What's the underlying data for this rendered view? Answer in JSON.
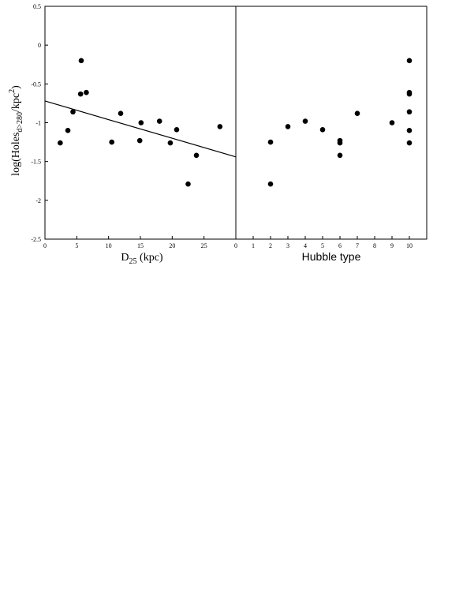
{
  "chart_data": [
    {
      "type": "scatter",
      "title": "",
      "xlabel_main": "D",
      "xlabel_sub": "25",
      "xlabel_rest": " (kpc)",
      "ylabel_pre": "log(Holes",
      "ylabel_sub": "d>280",
      "ylabel_mid": "/kpc",
      "ylabel_sup": "2",
      "ylabel_post": ")",
      "xlim": [
        0,
        30
      ],
      "ylim": [
        -2.5,
        0.5
      ],
      "xticks": [
        0,
        5,
        10,
        15,
        20,
        25
      ],
      "yticks": [
        0.5,
        0,
        -0.5,
        -1,
        -1.5,
        -2,
        -2.5
      ],
      "xtick_labels": [
        "0",
        "5",
        "10",
        "15",
        "20",
        "25"
      ],
      "ytick_labels": [
        "0.5",
        "0",
        "-0.5",
        "-1",
        "-1.5",
        "-2",
        "-2.5"
      ],
      "points": [
        {
          "x": 2.4,
          "y": -1.26
        },
        {
          "x": 3.6,
          "y": -1.1
        },
        {
          "x": 4.4,
          "y": -0.86
        },
        {
          "x": 5.6,
          "y": -0.63
        },
        {
          "x": 5.7,
          "y": -0.2
        },
        {
          "x": 6.5,
          "y": -0.61
        },
        {
          "x": 10.5,
          "y": -1.25
        },
        {
          "x": 11.9,
          "y": -0.88
        },
        {
          "x": 14.9,
          "y": -1.23
        },
        {
          "x": 15.1,
          "y": -1.0
        },
        {
          "x": 18.0,
          "y": -0.98
        },
        {
          "x": 19.7,
          "y": -1.26
        },
        {
          "x": 20.7,
          "y": -1.09
        },
        {
          "x": 22.5,
          "y": -1.79
        },
        {
          "x": 23.8,
          "y": -1.42
        },
        {
          "x": 27.5,
          "y": -1.05
        }
      ],
      "fit_line": {
        "x": [
          0,
          30
        ],
        "y": [
          -0.72,
          -1.44
        ]
      },
      "grid": false
    },
    {
      "type": "scatter",
      "title": "",
      "xlabel": "Hubble type",
      "xlim": [
        0,
        11
      ],
      "ylim": [
        -2.5,
        0.5
      ],
      "xticks": [
        0,
        1,
        2,
        3,
        4,
        5,
        6,
        7,
        8,
        9,
        10
      ],
      "xtick_labels": [
        "0",
        "1",
        "2",
        "3",
        "4",
        "5",
        "6",
        "7",
        "8",
        "9",
        "10"
      ],
      "points": [
        {
          "x": 2,
          "y": -1.25
        },
        {
          "x": 2,
          "y": -1.79
        },
        {
          "x": 3,
          "y": -1.05
        },
        {
          "x": 4,
          "y": -0.98
        },
        {
          "x": 5,
          "y": -1.09
        },
        {
          "x": 6,
          "y": -1.23
        },
        {
          "x": 6,
          "y": -1.26
        },
        {
          "x": 6,
          "y": -1.42
        },
        {
          "x": 7,
          "y": -0.88
        },
        {
          "x": 9,
          "y": -1.0
        },
        {
          "x": 10,
          "y": -0.2
        },
        {
          "x": 10,
          "y": -0.61
        },
        {
          "x": 10,
          "y": -0.63
        },
        {
          "x": 10,
          "y": -0.86
        },
        {
          "x": 10,
          "y": -1.1
        },
        {
          "x": 10,
          "y": -1.26
        }
      ],
      "grid": false
    }
  ]
}
